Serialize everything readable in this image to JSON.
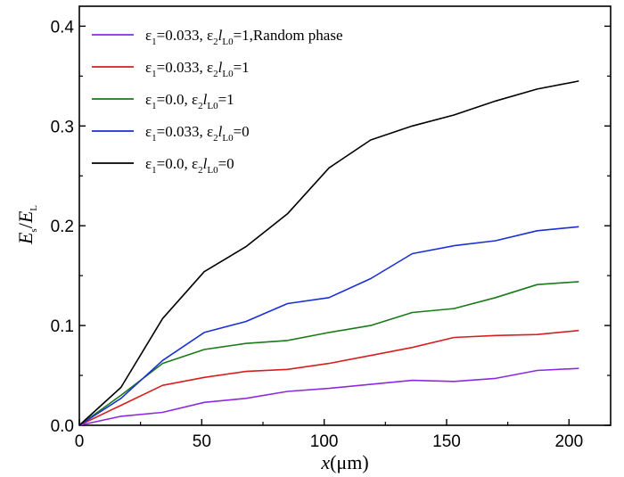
{
  "chart_data": {
    "type": "line",
    "title": "",
    "xlabel": {
      "var": "x",
      "unit": "(μm)"
    },
    "ylabel": {
      "num": "E",
      "num_sub": "s",
      "slash": "/",
      "den": "E",
      "den_sub": "L"
    },
    "xlim": [
      0,
      217
    ],
    "ylim": [
      0,
      0.42
    ],
    "x_ticks": [
      0,
      50,
      100,
      150,
      200
    ],
    "x_tick_labels": [
      "0",
      "50",
      "100",
      "150",
      "200"
    ],
    "y_ticks": [
      0.0,
      0.1,
      0.2,
      0.3,
      0.4
    ],
    "y_tick_labels": [
      "0.0",
      "0.1",
      "0.2",
      "0.3",
      "0.4"
    ],
    "grid": false,
    "legend_position": "top-left",
    "x": [
      0,
      17,
      34,
      51,
      68,
      85,
      102,
      119,
      136,
      153,
      170,
      187,
      204
    ],
    "series": [
      {
        "legend": {
          "e1": "ε",
          "e1_sub": "1",
          "e1_val": "=0.033, ε",
          "e2_sub": "2",
          "l": "l",
          "l_sub": "L0",
          "tail": "=1,Random phase"
        },
        "color": "#8a2be2",
        "values": [
          0.0,
          0.009,
          0.013,
          0.023,
          0.027,
          0.034,
          0.037,
          0.041,
          0.045,
          0.044,
          0.047,
          0.055,
          0.057
        ]
      },
      {
        "legend": {
          "e1": "ε",
          "e1_sub": "1",
          "e1_val": "=0.033, ε",
          "e2_sub": "2",
          "l": "l",
          "l_sub": "L0",
          "tail": "=1"
        },
        "color": "#d42020",
        "values": [
          0.0,
          0.02,
          0.04,
          0.048,
          0.054,
          0.056,
          0.062,
          0.07,
          0.078,
          0.088,
          0.09,
          0.091,
          0.095
        ]
      },
      {
        "legend": {
          "e1": "ε",
          "e1_sub": "1",
          "e1_val": "=0.0, ε",
          "e2_sub": "2",
          "l": "l",
          "l_sub": "L0",
          "tail": "=1"
        },
        "color": "#1a7a1a",
        "values": [
          0.0,
          0.03,
          0.062,
          0.076,
          0.082,
          0.085,
          0.093,
          0.1,
          0.113,
          0.117,
          0.128,
          0.141,
          0.144
        ]
      },
      {
        "legend": {
          "e1": "ε",
          "e1_sub": "1",
          "e1_val": "=0.033, ε",
          "e2_sub": "2",
          "l": "l",
          "l_sub": "L0",
          "tail": "=0"
        },
        "color": "#1a2fd6",
        "values": [
          0.0,
          0.027,
          0.065,
          0.093,
          0.104,
          0.122,
          0.128,
          0.147,
          0.172,
          0.18,
          0.185,
          0.195,
          0.199
        ]
      },
      {
        "legend": {
          "e1": "ε",
          "e1_sub": "1",
          "e1_val": "=0.0, ε",
          "e2_sub": "2",
          "l": "l",
          "l_sub": "L0",
          "tail": "=0"
        },
        "color": "#000000",
        "values": [
          0.0,
          0.038,
          0.107,
          0.154,
          0.179,
          0.212,
          0.258,
          0.286,
          0.3,
          0.311,
          0.325,
          0.337,
          0.345
        ]
      }
    ]
  }
}
